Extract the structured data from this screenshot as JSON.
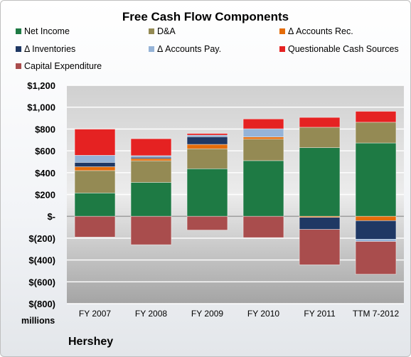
{
  "chart_data": {
    "type": "bar",
    "stacked": true,
    "title": "Free Cash Flow Components",
    "company": "Hershey",
    "unit_label": "millions",
    "categories": [
      "FY 2007",
      "FY 2008",
      "FY 2009",
      "FY 2010",
      "FY 2011",
      "TTM 7-2012"
    ],
    "ylim": [
      -800,
      1200
    ],
    "yticks": [
      -800,
      -600,
      -400,
      -200,
      0,
      200,
      400,
      600,
      800,
      1000,
      1200
    ],
    "ytick_labels": [
      "$(800)",
      "$(600)",
      "$(400)",
      "$(200)",
      "$-",
      "$200",
      "$400",
      "$600",
      "$800",
      "$1,000",
      "$1,200"
    ],
    "grid": true,
    "legend_position": "top",
    "series": [
      {
        "name": "Net Income",
        "color": "#1e7a44",
        "values": [
          214,
          311,
          436,
          510,
          629,
          672
        ]
      },
      {
        "name": "D&A",
        "color": "#948a54",
        "values": [
          205,
          198,
          183,
          197,
          187,
          190
        ]
      },
      {
        "name": "Δ Accounts Rec.",
        "color": "#e46c0a",
        "values": [
          35,
          20,
          40,
          20,
          -10,
          -40
        ]
      },
      {
        "name": "Δ Inventories",
        "color": "#1f3864",
        "values": [
          40,
          12,
          70,
          0,
          -110,
          -170
        ]
      },
      {
        "name": "Δ Accounts Pay.",
        "color": "#95b3d7",
        "values": [
          65,
          15,
          15,
          75,
          0,
          -20
        ]
      },
      {
        "name": "Questionable Cash Sources",
        "color": "#e52222",
        "values": [
          240,
          155,
          15,
          90,
          90,
          100
        ]
      },
      {
        "name": "Capital Expenditure",
        "color": "#a94d4d",
        "values": [
          -190,
          -260,
          -126,
          -195,
          -324,
          -300
        ]
      }
    ]
  }
}
